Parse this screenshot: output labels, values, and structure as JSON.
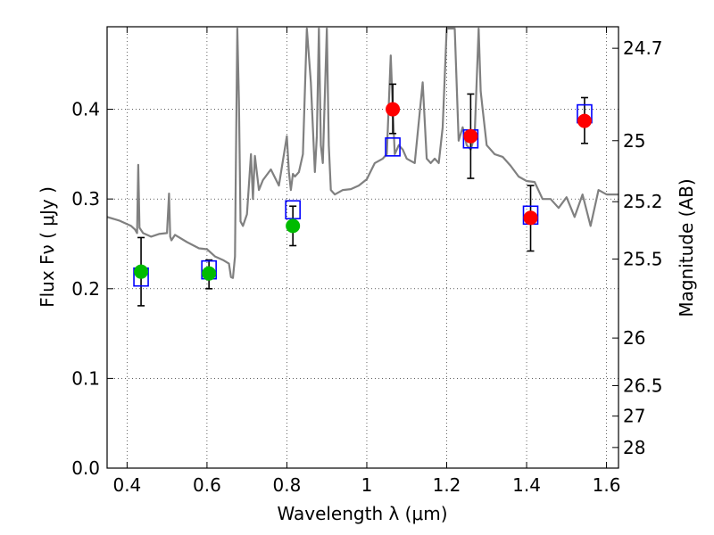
{
  "chart_data": {
    "type": "scatter",
    "title": "",
    "xlabel": "Wavelength  λ (μm)",
    "ylabel": "Flux  Fν  ( μJy )",
    "y2label": "Magnitude (AB)",
    "xlim": [
      0.35,
      1.63
    ],
    "ylim": [
      0.0,
      0.492
    ],
    "grid": true,
    "x_ticks": [
      0.4,
      0.6,
      0.8,
      1.0,
      1.2,
      1.4,
      1.6
    ],
    "x_tick_labels": [
      "0.4",
      "0.6",
      "0.8",
      "1",
      "1.2",
      "1.4",
      "1.6"
    ],
    "y_ticks": [
      0.0,
      0.1,
      0.2,
      0.3,
      0.4
    ],
    "y_tick_labels": [
      "0.0",
      "0.1",
      "0.2",
      "0.3",
      "0.4"
    ],
    "y2_ticks_flux": [
      0.468,
      0.365,
      0.297,
      0.233,
      0.145,
      0.092,
      0.058,
      0.023
    ],
    "y2_tick_labels": [
      "24.7",
      "25",
      "25.2",
      "25.5",
      "26",
      "26.5",
      "27",
      "28"
    ],
    "colors": {
      "spectrum": "#808080",
      "model_box": "#0000ff",
      "green_points": "#00bb00",
      "red_points": "#ff0000",
      "error_bars": "#000000"
    },
    "series": [
      {
        "marker": "circle",
        "color": "#00bb00",
        "x": [
          0.435,
          0.605,
          0.815
        ],
        "y": [
          0.219,
          0.217,
          0.27
        ],
        "yerr_low": [
          0.038,
          0.017,
          0.022
        ],
        "yerr_high": [
          0.038,
          0.015,
          0.022
        ]
      },
      {
        "marker": "circle",
        "color": "#ff0000",
        "x": [
          1.065,
          1.26,
          1.41,
          1.545
        ],
        "y": [
          0.4,
          0.37,
          0.279,
          0.387
        ],
        "yerr_low": [
          0.027,
          0.047,
          0.037,
          0.025
        ],
        "yerr_high": [
          0.028,
          0.047,
          0.036,
          0.026
        ]
      },
      {
        "marker": "square",
        "color": "#0000ff",
        "x": [
          0.435,
          0.605,
          0.815,
          1.065,
          1.26,
          1.41,
          1.545
        ],
        "y": [
          0.213,
          0.221,
          0.288,
          0.358,
          0.367,
          0.282,
          0.395
        ]
      },
      {
        "type": "line",
        "color": "#808080",
        "x": [
          0.35,
          0.38,
          0.41,
          0.42,
          0.425,
          0.428,
          0.431,
          0.44,
          0.46,
          0.48,
          0.5,
          0.505,
          0.508,
          0.511,
          0.52,
          0.55,
          0.58,
          0.6,
          0.62,
          0.64,
          0.655,
          0.66,
          0.665,
          0.67,
          0.672,
          0.676,
          0.68,
          0.684,
          0.69,
          0.7,
          0.71,
          0.715,
          0.72,
          0.73,
          0.74,
          0.76,
          0.78,
          0.8,
          0.805,
          0.81,
          0.815,
          0.82,
          0.83,
          0.84,
          0.85,
          0.86,
          0.87,
          0.875,
          0.88,
          0.885,
          0.89,
          0.9,
          0.905,
          0.91,
          0.92,
          0.94,
          0.96,
          0.98,
          1.0,
          1.02,
          1.04,
          1.05,
          1.06,
          1.065,
          1.07,
          1.08,
          1.09,
          1.1,
          1.12,
          1.14,
          1.15,
          1.16,
          1.17,
          1.18,
          1.19,
          1.2,
          1.21,
          1.22,
          1.23,
          1.24,
          1.25,
          1.26,
          1.27,
          1.28,
          1.285,
          1.29,
          1.3,
          1.32,
          1.34,
          1.36,
          1.38,
          1.4,
          1.42,
          1.44,
          1.46,
          1.48,
          1.5,
          1.52,
          1.54,
          1.56,
          1.58,
          1.6,
          1.63
        ],
        "y": [
          0.28,
          0.276,
          0.27,
          0.266,
          0.262,
          0.338,
          0.268,
          0.262,
          0.258,
          0.261,
          0.262,
          0.306,
          0.258,
          0.254,
          0.26,
          0.252,
          0.245,
          0.244,
          0.236,
          0.232,
          0.228,
          0.213,
          0.212,
          0.236,
          0.32,
          0.49,
          0.41,
          0.275,
          0.27,
          0.283,
          0.35,
          0.3,
          0.348,
          0.31,
          0.321,
          0.333,
          0.315,
          0.37,
          0.33,
          0.31,
          0.328,
          0.325,
          0.33,
          0.35,
          0.49,
          0.43,
          0.33,
          0.37,
          0.49,
          0.36,
          0.34,
          0.49,
          0.36,
          0.31,
          0.305,
          0.31,
          0.311,
          0.315,
          0.322,
          0.34,
          0.345,
          0.35,
          0.46,
          0.4,
          0.35,
          0.36,
          0.355,
          0.345,
          0.34,
          0.43,
          0.345,
          0.34,
          0.345,
          0.34,
          0.38,
          0.49,
          0.49,
          0.49,
          0.365,
          0.38,
          0.36,
          0.355,
          0.37,
          0.49,
          0.42,
          0.4,
          0.36,
          0.35,
          0.347,
          0.337,
          0.325,
          0.32,
          0.319,
          0.3,
          0.3,
          0.29,
          0.302,
          0.28,
          0.305,
          0.27,
          0.31,
          0.305,
          0.305
        ]
      }
    ]
  }
}
